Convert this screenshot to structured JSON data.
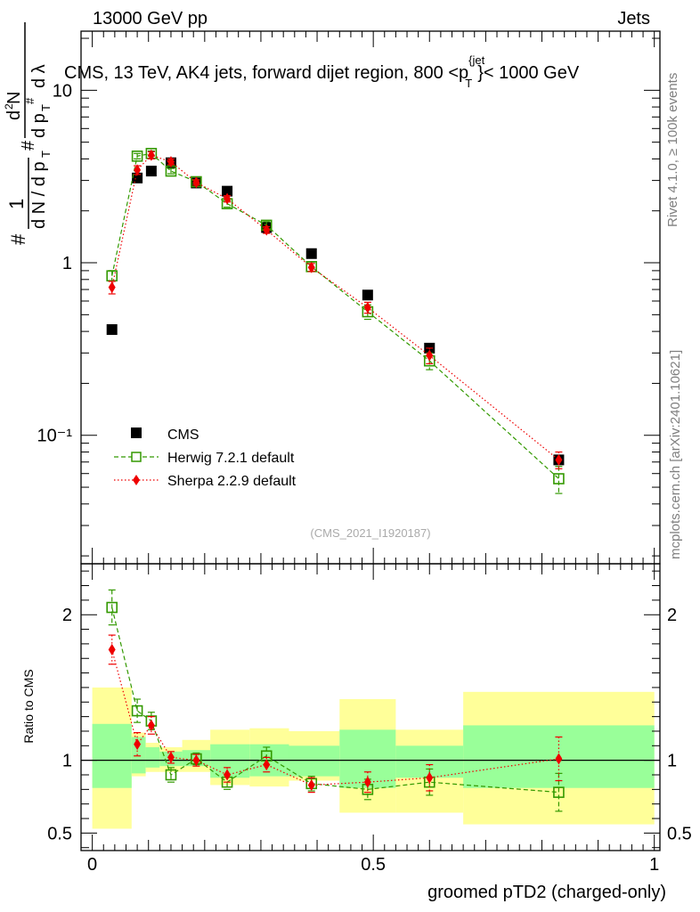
{
  "header": {
    "left": "13000 GeV pp",
    "right": "Jets"
  },
  "chart_data": [
    {
      "type": "scatter",
      "panel": "main",
      "title": "CMS, 13 TeV, AK4 jets, forward dijet region, 800 <p",
      "title_sup": "{jet",
      "title_sub": "T",
      "title_suffix": "}< 1000 GeV",
      "ylabel": "1/dN/dpT dN/dpT dλ",
      "yscale": "log",
      "ylim": [
        0.018,
        22
      ],
      "xlim": [
        -0.02,
        1.01
      ],
      "ytick_labels": [
        "10⁻¹",
        "1",
        "10"
      ],
      "ytick_values": [
        0.1,
        1,
        10
      ],
      "watermark": "(CMS_2021_I1920187)",
      "series": [
        {
          "name": "CMS",
          "color": "#000000",
          "marker": "square-filled",
          "x": [
            0.035,
            0.08,
            0.105,
            0.14,
            0.185,
            0.24,
            0.31,
            0.39,
            0.49,
            0.6,
            0.83
          ],
          "y": [
            0.41,
            3.1,
            3.4,
            3.8,
            2.9,
            2.6,
            1.6,
            1.13,
            0.65,
            0.32,
            0.072
          ]
        },
        {
          "name": "Herwig 7.2.1 default",
          "color": "#339900",
          "marker": "square-open",
          "line": "dashed",
          "x": [
            0.035,
            0.08,
            0.105,
            0.14,
            0.185,
            0.24,
            0.31,
            0.39,
            0.49,
            0.6,
            0.83
          ],
          "y": [
            0.84,
            4.15,
            4.3,
            3.4,
            2.95,
            2.2,
            1.65,
            0.95,
            0.52,
            0.27,
            0.056
          ],
          "yerr": [
            0.06,
            0.15,
            0.15,
            0.12,
            0.08,
            0.1,
            0.08,
            0.06,
            0.05,
            0.03,
            0.01
          ]
        },
        {
          "name": "Sherpa 2.2.9 default",
          "color": "#ee0000",
          "marker": "diamond-filled",
          "line": "dotted",
          "x": [
            0.035,
            0.08,
            0.105,
            0.14,
            0.185,
            0.24,
            0.31,
            0.39,
            0.49,
            0.6,
            0.83
          ],
          "y": [
            0.72,
            3.45,
            4.2,
            3.85,
            2.92,
            2.35,
            1.55,
            0.94,
            0.55,
            0.29,
            0.072
          ],
          "yerr": [
            0.06,
            0.2,
            0.2,
            0.15,
            0.1,
            0.1,
            0.07,
            0.05,
            0.04,
            0.03,
            0.008
          ]
        }
      ]
    },
    {
      "type": "scatter",
      "panel": "ratio",
      "xlabel": "groomed pTD2 (charged-only)",
      "ylabel": "Ratio to CMS",
      "ylim": [
        0.38,
        2.35
      ],
      "xlim": [
        -0.02,
        1.01
      ],
      "xtick_values": [
        0,
        0.5,
        1
      ],
      "xtick_labels": [
        "0",
        "0.5",
        "1"
      ],
      "ytick_values": [
        0.5,
        1,
        2
      ],
      "ytick_labels": [
        "0.5",
        "1",
        "2"
      ],
      "bands": {
        "bin_edges": [
          0.0,
          0.07,
          0.095,
          0.12,
          0.16,
          0.21,
          0.28,
          0.35,
          0.44,
          0.54,
          0.66,
          1.0
        ],
        "stat_lo": [
          0.81,
          0.91,
          0.95,
          0.96,
          0.96,
          0.88,
          0.89,
          0.89,
          0.81,
          0.88,
          0.81
        ],
        "stat_hi": [
          1.25,
          1.16,
          1.09,
          1.06,
          1.07,
          1.11,
          1.11,
          1.1,
          1.21,
          1.1,
          1.24
        ],
        "total_lo": [
          0.53,
          0.89,
          0.92,
          0.92,
          0.92,
          0.83,
          0.82,
          0.86,
          0.64,
          0.64,
          0.56
        ],
        "total_hi": [
          1.5,
          1.19,
          1.12,
          1.09,
          1.14,
          1.21,
          1.22,
          1.2,
          1.42,
          1.21,
          1.47
        ],
        "stat_color": "#99ff99",
        "total_color": "#ffff99"
      },
      "series": [
        {
          "name": "Herwig 7.2.1 default",
          "color": "#339900",
          "marker": "square-open",
          "line": "dashed",
          "x": [
            0.035,
            0.08,
            0.105,
            0.14,
            0.185,
            0.24,
            0.31,
            0.39,
            0.49,
            0.6,
            0.83
          ],
          "y": [
            2.05,
            1.34,
            1.27,
            0.9,
            1.01,
            0.85,
            1.03,
            0.84,
            0.8,
            0.85,
            0.78
          ],
          "yerr": [
            0.12,
            0.08,
            0.06,
            0.05,
            0.04,
            0.05,
            0.06,
            0.05,
            0.07,
            0.09,
            0.13
          ]
        },
        {
          "name": "Sherpa 2.2.9 default",
          "color": "#ee0000",
          "marker": "diamond-filled",
          "line": "dotted",
          "x": [
            0.035,
            0.08,
            0.105,
            0.14,
            0.185,
            0.24,
            0.31,
            0.39,
            0.49,
            0.6,
            0.83
          ],
          "y": [
            1.76,
            1.11,
            1.24,
            1.02,
            1.0,
            0.9,
            0.97,
            0.83,
            0.85,
            0.88,
            1.01
          ],
          "yerr": [
            0.1,
            0.08,
            0.06,
            0.04,
            0.04,
            0.05,
            0.05,
            0.05,
            0.07,
            0.09,
            0.15
          ]
        }
      ]
    }
  ],
  "legend": {
    "items": [
      "CMS",
      "Herwig 7.2.1 default",
      "Sherpa 2.2.9 default"
    ]
  },
  "side_text": {
    "rivet": "Rivet 4.1.0, ≥ 100k events",
    "mcplots": "mcplots.cern.ch [arXiv:2401.10621]"
  }
}
